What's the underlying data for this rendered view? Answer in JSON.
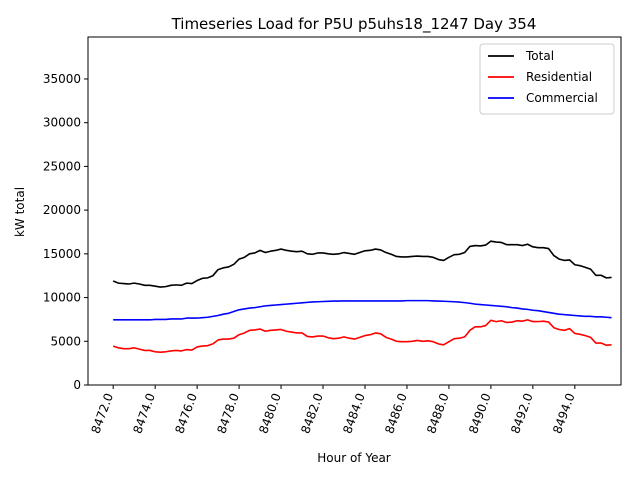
{
  "chart_data": {
    "type": "line",
    "title": "Timeseries Load for P5U p5uhs18_1247  Day 354",
    "xlabel": "Hour of Year",
    "ylabel": "kW total",
    "xlim": [
      8470.8,
      8496.2
    ],
    "ylim": [
      0,
      39800
    ],
    "xticks": [
      8472,
      8474,
      8476,
      8478,
      8480,
      8482,
      8484,
      8486,
      8488,
      8490,
      8492,
      8494
    ],
    "xtick_labels": [
      "8472.0",
      "8474.0",
      "8476.0",
      "8478.0",
      "8480.0",
      "8482.0",
      "8484.0",
      "8486.0",
      "8488.0",
      "8490.0",
      "8492.0",
      "8494.0"
    ],
    "yticks": [
      0,
      5000,
      10000,
      15000,
      20000,
      25000,
      30000,
      35000
    ],
    "ytick_labels": [
      "0",
      "5000",
      "10000",
      "15000",
      "20000",
      "25000",
      "30000",
      "35000"
    ],
    "legend_position": "top-right",
    "x_start": 8472.0,
    "x_step": 0.25,
    "series": [
      {
        "name": "Total",
        "color": "#000000",
        "values": [
          11900,
          11650,
          11600,
          11550,
          11650,
          11550,
          11400,
          11400,
          11300,
          11200,
          11250,
          11400,
          11450,
          11400,
          11650,
          11600,
          11950,
          12200,
          12250,
          12500,
          13200,
          13400,
          13500,
          13800,
          14400,
          14600,
          15000,
          15100,
          15400,
          15150,
          15300,
          15400,
          15550,
          15400,
          15300,
          15250,
          15300,
          15000,
          14950,
          15100,
          15100,
          15000,
          14950,
          15000,
          15150,
          15050,
          14950,
          15150,
          15350,
          15400,
          15550,
          15450,
          15150,
          14950,
          14700,
          14650,
          14650,
          14700,
          14750,
          14700,
          14700,
          14600,
          14350,
          14250,
          14600,
          14900,
          14950,
          15150,
          15850,
          15950,
          15900,
          16000,
          16450,
          16350,
          16300,
          16050,
          16050,
          16050,
          15950,
          16100,
          15800,
          15700,
          15700,
          15600,
          14800,
          14400,
          14250,
          14300,
          13750,
          13650,
          13450,
          13250,
          12550,
          12550,
          12250,
          12300
        ]
      },
      {
        "name": "Residential",
        "color": "#ff0000",
        "values": [
          4450,
          4250,
          4150,
          4150,
          4250,
          4100,
          3950,
          3950,
          3800,
          3750,
          3800,
          3900,
          3950,
          3900,
          4050,
          4000,
          4350,
          4450,
          4500,
          4700,
          5150,
          5250,
          5250,
          5350,
          5750,
          5950,
          6250,
          6300,
          6400,
          6150,
          6250,
          6300,
          6350,
          6150,
          6050,
          5950,
          5950,
          5550,
          5500,
          5600,
          5600,
          5400,
          5300,
          5350,
          5500,
          5350,
          5250,
          5450,
          5650,
          5750,
          5950,
          5850,
          5450,
          5250,
          5000,
          4950,
          4950,
          5000,
          5100,
          5000,
          5050,
          4950,
          4700,
          4600,
          4950,
          5300,
          5350,
          5500,
          6250,
          6650,
          6650,
          6800,
          7400,
          7250,
          7350,
          7150,
          7200,
          7350,
          7300,
          7450,
          7250,
          7250,
          7300,
          7200,
          6550,
          6350,
          6250,
          6450,
          5900,
          5800,
          5650,
          5450,
          4800,
          4800,
          4550,
          4600
        ]
      },
      {
        "name": "Commercial",
        "color": "#0000ff",
        "values": [
          7450,
          7450,
          7450,
          7450,
          7450,
          7450,
          7450,
          7450,
          7500,
          7500,
          7500,
          7550,
          7550,
          7550,
          7650,
          7650,
          7650,
          7700,
          7750,
          7850,
          7950,
          8100,
          8200,
          8400,
          8600,
          8700,
          8800,
          8850,
          8950,
          9050,
          9100,
          9150,
          9200,
          9250,
          9300,
          9350,
          9400,
          9450,
          9500,
          9520,
          9550,
          9570,
          9600,
          9600,
          9620,
          9620,
          9620,
          9620,
          9620,
          9620,
          9620,
          9620,
          9620,
          9620,
          9620,
          9620,
          9650,
          9650,
          9650,
          9650,
          9650,
          9620,
          9600,
          9580,
          9550,
          9520,
          9480,
          9420,
          9350,
          9250,
          9200,
          9150,
          9100,
          9050,
          9000,
          8950,
          8850,
          8800,
          8700,
          8650,
          8550,
          8500,
          8400,
          8300,
          8200,
          8100,
          8050,
          8000,
          7950,
          7900,
          7850,
          7850,
          7800,
          7800,
          7750,
          7700
        ]
      }
    ]
  }
}
